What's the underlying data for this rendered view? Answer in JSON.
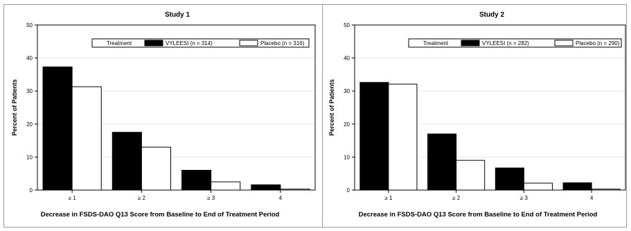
{
  "chart_data": [
    {
      "type": "bar",
      "title": "Study 1",
      "xlabel": "Decrease in FSDS-DAO Q13 Score from Baseline to End of Treatment Period",
      "ylabel": "Percent of Patients",
      "ylim": [
        0,
        50
      ],
      "yticks": [
        "0",
        "10",
        "20",
        "30",
        "40",
        "50"
      ],
      "grid": true,
      "categories": [
        "≥ 1",
        "≥ 2",
        "≥ 3",
        "4"
      ],
      "legend": {
        "title": "Treatment",
        "placement": "top-right"
      },
      "series": [
        {
          "name": "VYLEESI (n = 314)",
          "values": [
            37.3,
            17.5,
            6.0,
            1.6
          ]
        },
        {
          "name": "Placebo (n = 316)",
          "values": [
            31.3,
            13.0,
            2.5,
            0.3
          ]
        }
      ]
    },
    {
      "type": "bar",
      "title": "Study 2",
      "xlabel": "Decrease in FSDS-DAO Q13 Score from Baseline to End of Treatment Period",
      "ylabel": "Percent of Patients",
      "ylim": [
        0,
        50
      ],
      "yticks": [
        "0",
        "10",
        "20",
        "30",
        "40",
        "50"
      ],
      "grid": true,
      "categories": [
        "≥ 1",
        "≥ 2",
        "≥ 3",
        "4"
      ],
      "legend": {
        "title": "Treatment",
        "placement": "top-right"
      },
      "series": [
        {
          "name": "VYLEESI (n = 282)",
          "values": [
            32.6,
            17.0,
            6.7,
            2.2
          ]
        },
        {
          "name": "Placebo (n = 290)",
          "values": [
            32.1,
            9.0,
            2.1,
            0.3
          ]
        }
      ]
    }
  ],
  "colors": {
    "vyleesi": "#000000",
    "placebo": "#ffffff",
    "grid": "#e6e6e6",
    "axis": "#000000"
  }
}
